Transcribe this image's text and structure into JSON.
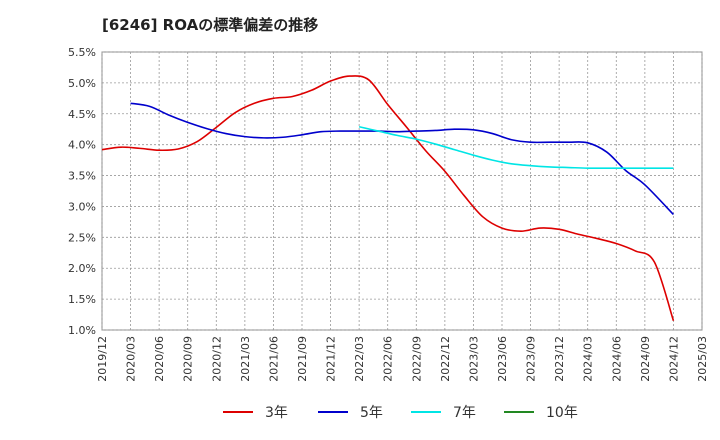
{
  "chart_data": {
    "type": "line",
    "title": "[6246]  ROAの標準偏差の推移",
    "xlabel": "",
    "ylabel": "",
    "ylim": [
      0.01,
      0.055
    ],
    "y_ticks": [
      "5.5%",
      "5.0%",
      "4.5%",
      "4.0%",
      "3.5%",
      "3.0%",
      "2.5%",
      "2.0%",
      "1.5%",
      "1.0%"
    ],
    "x_ticks": [
      "2019/12",
      "2020/03",
      "2020/06",
      "2020/09",
      "2020/12",
      "2021/03",
      "2021/06",
      "2021/09",
      "2021/12",
      "2022/03",
      "2022/06",
      "2022/09",
      "2022/12",
      "2023/03",
      "2023/06",
      "2023/09",
      "2023/12",
      "2024/03",
      "2024/06",
      "2024/09",
      "2024/12",
      "2025/03"
    ],
    "grid": true,
    "legend_position": "bottom",
    "series": [
      {
        "name": "3年",
        "color": "#dd0000",
        "points": [
          [
            "2019/12",
            0.0392
          ],
          [
            "2020/02",
            0.0396
          ],
          [
            "2020/04",
            0.0394
          ],
          [
            "2020/06",
            0.0391
          ],
          [
            "2020/08",
            0.0393
          ],
          [
            "2020/10",
            0.0405
          ],
          [
            "2020/12",
            0.0428
          ],
          [
            "2021/02",
            0.0452
          ],
          [
            "2021/04",
            0.0467
          ],
          [
            "2021/06",
            0.0475
          ],
          [
            "2021/08",
            0.0478
          ],
          [
            "2021/10",
            0.0488
          ],
          [
            "2021/12",
            0.0503
          ],
          [
            "2022/02",
            0.0511
          ],
          [
            "2022/04",
            0.0505
          ],
          [
            "2022/06",
            0.0465
          ],
          [
            "2022/08",
            0.0428
          ],
          [
            "2022/10",
            0.039
          ],
          [
            "2022/12",
            0.0357
          ],
          [
            "2023/02",
            0.0318
          ],
          [
            "2023/04",
            0.0283
          ],
          [
            "2023/06",
            0.0265
          ],
          [
            "2023/08",
            0.026
          ],
          [
            "2023/10",
            0.0265
          ],
          [
            "2023/12",
            0.0263
          ],
          [
            "2024/02",
            0.0255
          ],
          [
            "2024/04",
            0.0248
          ],
          [
            "2024/06",
            0.024
          ],
          [
            "2024/08",
            0.0228
          ],
          [
            "2024/10",
            0.021
          ],
          [
            "2024/12",
            0.0115
          ]
        ]
      },
      {
        "name": "5年",
        "color": "#0000cc",
        "points": [
          [
            "2020/03",
            0.0467
          ],
          [
            "2020/05",
            0.0462
          ],
          [
            "2020/07",
            0.0448
          ],
          [
            "2020/09",
            0.0436
          ],
          [
            "2020/11",
            0.0426
          ],
          [
            "2021/01",
            0.0418
          ],
          [
            "2021/03",
            0.0413
          ],
          [
            "2021/05",
            0.0411
          ],
          [
            "2021/07",
            0.0412
          ],
          [
            "2021/09",
            0.0416
          ],
          [
            "2021/11",
            0.0421
          ],
          [
            "2022/01",
            0.0422
          ],
          [
            "2022/03",
            0.0422
          ],
          [
            "2022/05",
            0.0422
          ],
          [
            "2022/07",
            0.0421
          ],
          [
            "2022/09",
            0.0422
          ],
          [
            "2022/11",
            0.0423
          ],
          [
            "2023/01",
            0.0425
          ],
          [
            "2023/03",
            0.0424
          ],
          [
            "2023/05",
            0.0418
          ],
          [
            "2023/07",
            0.0408
          ],
          [
            "2023/09",
            0.0404
          ],
          [
            "2023/11",
            0.0404
          ],
          [
            "2024/01",
            0.0404
          ],
          [
            "2024/03",
            0.0403
          ],
          [
            "2024/05",
            0.0388
          ],
          [
            "2024/07",
            0.0358
          ],
          [
            "2024/09",
            0.0335
          ],
          [
            "2024/12",
            0.0287
          ]
        ]
      },
      {
        "name": "7年",
        "color": "#00e5e5",
        "points": [
          [
            "2022/03",
            0.0429
          ],
          [
            "2022/05",
            0.0422
          ],
          [
            "2022/07",
            0.0415
          ],
          [
            "2022/09",
            0.0409
          ],
          [
            "2022/11",
            0.0401
          ],
          [
            "2023/01",
            0.0392
          ],
          [
            "2023/03",
            0.0383
          ],
          [
            "2023/05",
            0.0375
          ],
          [
            "2023/07",
            0.0369
          ],
          [
            "2023/09",
            0.0366
          ],
          [
            "2023/11",
            0.0364
          ],
          [
            "2024/01",
            0.0363
          ],
          [
            "2024/03",
            0.0362
          ],
          [
            "2024/05",
            0.0362
          ],
          [
            "2024/07",
            0.0362
          ],
          [
            "2024/09",
            0.0362
          ],
          [
            "2024/12",
            0.0362
          ]
        ]
      },
      {
        "name": "10年",
        "color": "#228822",
        "points": []
      }
    ]
  }
}
